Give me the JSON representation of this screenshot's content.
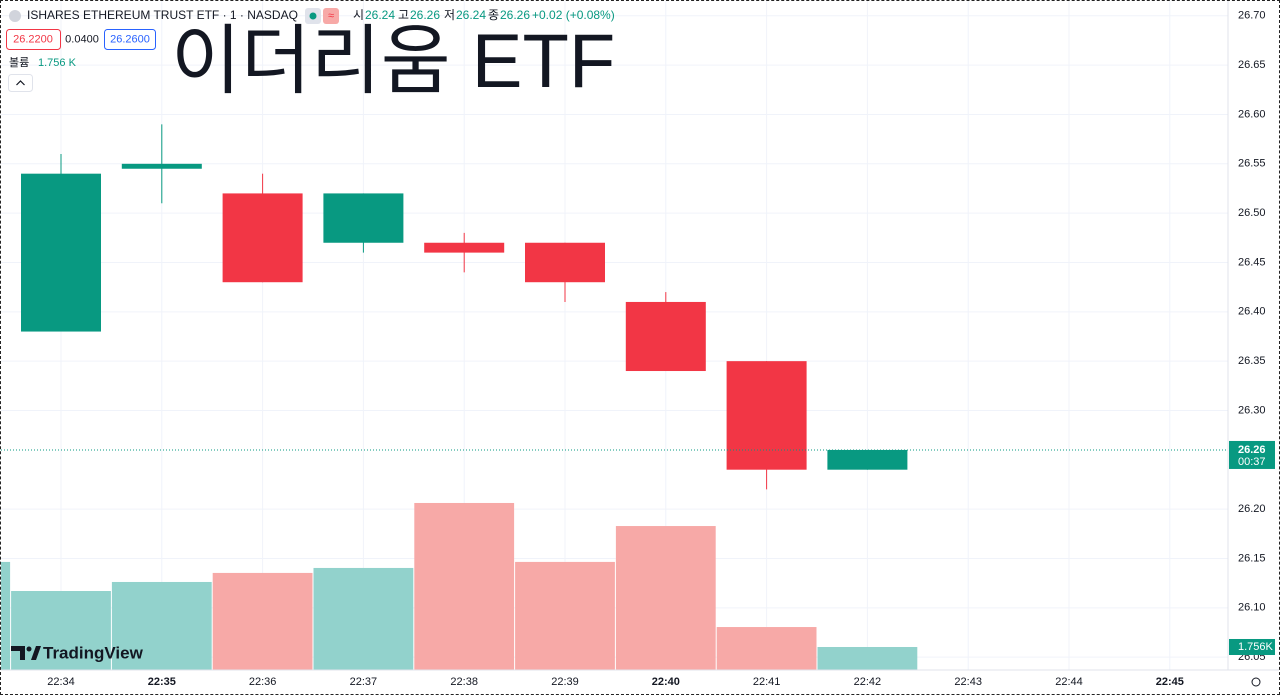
{
  "header": {
    "symbol": "ISHARES ETHEREUM TRUST ETF · 1 · NASDAQ",
    "open_label": "시",
    "open": "26.24",
    "high_label": "고",
    "high": "26.26",
    "low_label": "저",
    "low": "26.24",
    "close_label": "종",
    "close": "26.26",
    "change": "+0.02 (+0.08%)",
    "bid": "26.2200",
    "spread": "0.0400",
    "ask": "26.2600",
    "volume_label": "볼륨",
    "volume": "1.756 K"
  },
  "chart_data": {
    "type": "candlestick",
    "title": "이더리움 ETF",
    "categories": [
      null,
      "22:34",
      "22:35",
      "22:36",
      "22:37",
      "22:38",
      "22:39",
      "22:40",
      "22:41",
      "22:42",
      "22:43",
      "22:44",
      "22:45"
    ],
    "open": [
      null,
      26.38,
      26.545,
      26.52,
      26.47,
      26.47,
      26.47,
      26.41,
      26.35,
      26.24,
      null,
      null,
      null
    ],
    "high": [
      null,
      26.56,
      26.59,
      26.54,
      26.52,
      26.48,
      26.47,
      26.42,
      26.35,
      26.26,
      null,
      null,
      null
    ],
    "low": [
      null,
      26.38,
      26.51,
      26.43,
      26.46,
      26.44,
      26.41,
      26.34,
      26.22,
      26.24,
      null,
      null,
      null
    ],
    "close": [
      null,
      26.54,
      26.55,
      26.43,
      26.52,
      26.46,
      26.43,
      26.34,
      26.24,
      26.26,
      null,
      null,
      null
    ],
    "volume": [
      8.25,
      6.03,
      6.72,
      7.41,
      7.79,
      12.75,
      8.25,
      10.99,
      3.28,
      1.756,
      null,
      null,
      null
    ],
    "volume_tag": "1.756K",
    "up_color": "#089981",
    "down_color": "#f23645",
    "volume_up_color": "#92d2cc",
    "volume_down_color": "#f7a9a7",
    "ylim": [
      26.037,
      26.715
    ],
    "yticks": [
      {
        "value": 26.7,
        "label": "26.70"
      },
      26.65,
      {
        "value": 26.6,
        "label": "26.60"
      },
      26.55,
      {
        "value": 26.5,
        "label": "26.50"
      },
      26.45,
      {
        "value": 26.4,
        "label": "26.40"
      },
      26.35,
      {
        "value": 26.3,
        "label": "26.30"
      },
      {
        "value": 26.2,
        "label": "26.20"
      },
      26.15,
      {
        "value": 26.1,
        "label": "26.10"
      },
      26.05
    ],
    "last_price": 26.26,
    "last_price_label": "26.26",
    "countdown": "00:37",
    "grid": true,
    "watermark": "TradingView"
  }
}
